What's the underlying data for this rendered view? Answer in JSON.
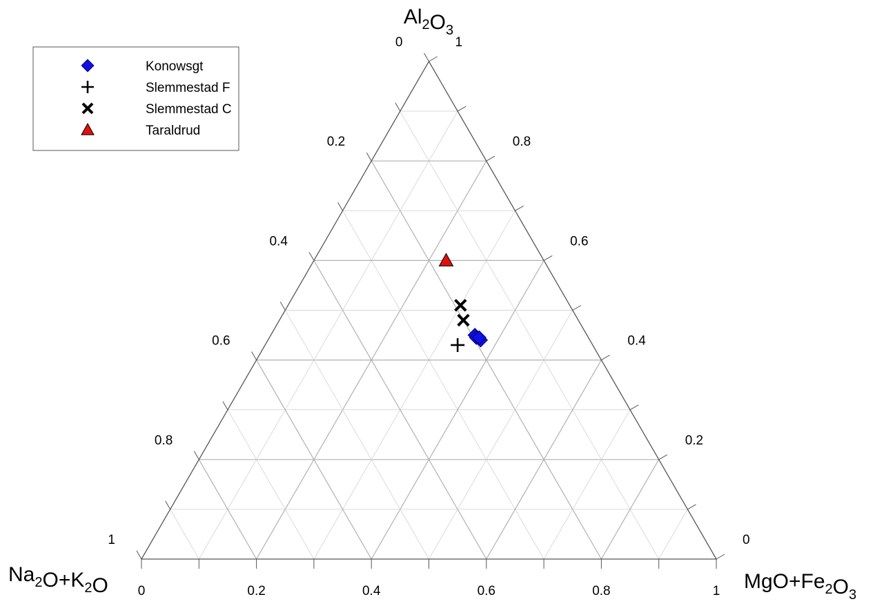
{
  "chart_data": {
    "type": "ternary",
    "apices": {
      "top": {
        "base": [
          "Al",
          "O"
        ],
        "subs": [
          "2",
          "3"
        ],
        "text": "Al2O3"
      },
      "left": {
        "base": [
          "Na",
          "O+K",
          "O"
        ],
        "subs": [
          "2",
          "2",
          ""
        ],
        "text": "Na2O+K2O"
      },
      "right": {
        "base": [
          "MgO+Fe",
          "O"
        ],
        "subs": [
          "2",
          "3"
        ],
        "text": "MgO+Fe2O3"
      }
    },
    "ticks": {
      "bottom": [
        "0",
        "0.2",
        "0.4",
        "0.6",
        "0.8",
        "1"
      ],
      "left": [
        "0",
        "0.2",
        "0.4",
        "0.6",
        "0.8",
        "1"
      ],
      "right": [
        "1",
        "0.8",
        "0.6",
        "0.4",
        "0.2",
        "0"
      ]
    },
    "grid": true,
    "grid_step": 0.1,
    "legend_position": "top-left",
    "series": [
      {
        "name": "Konowsgt",
        "marker": "diamond",
        "color": "#1010e0",
        "points": [
          {
            "al2o3": 0.45,
            "mgo_fe2o3": 0.355,
            "na2o_k2o": 0.195
          },
          {
            "al2o3": 0.445,
            "mgo_fe2o3": 0.36,
            "na2o_k2o": 0.195
          },
          {
            "al2o3": 0.44,
            "mgo_fe2o3": 0.37,
            "na2o_k2o": 0.19
          },
          {
            "al2o3": 0.445,
            "mgo_fe2o3": 0.365,
            "na2o_k2o": 0.19
          }
        ]
      },
      {
        "name": "Slemmestad F",
        "marker": "plus",
        "color": "#000000",
        "points": [
          {
            "al2o3": 0.43,
            "mgo_fe2o3": 0.335,
            "na2o_k2o": 0.235
          }
        ]
      },
      {
        "name": "Slemmestad C",
        "marker": "x",
        "color": "#000000",
        "points": [
          {
            "al2o3": 0.51,
            "mgo_fe2o3": 0.3,
            "na2o_k2o": 0.19
          },
          {
            "al2o3": 0.48,
            "mgo_fe2o3": 0.32,
            "na2o_k2o": 0.2
          }
        ]
      },
      {
        "name": "Taraldrud",
        "marker": "triangle",
        "color": "#e01010",
        "points": [
          {
            "al2o3": 0.6,
            "mgo_fe2o3": 0.23,
            "na2o_k2o": 0.17
          }
        ]
      }
    ]
  }
}
